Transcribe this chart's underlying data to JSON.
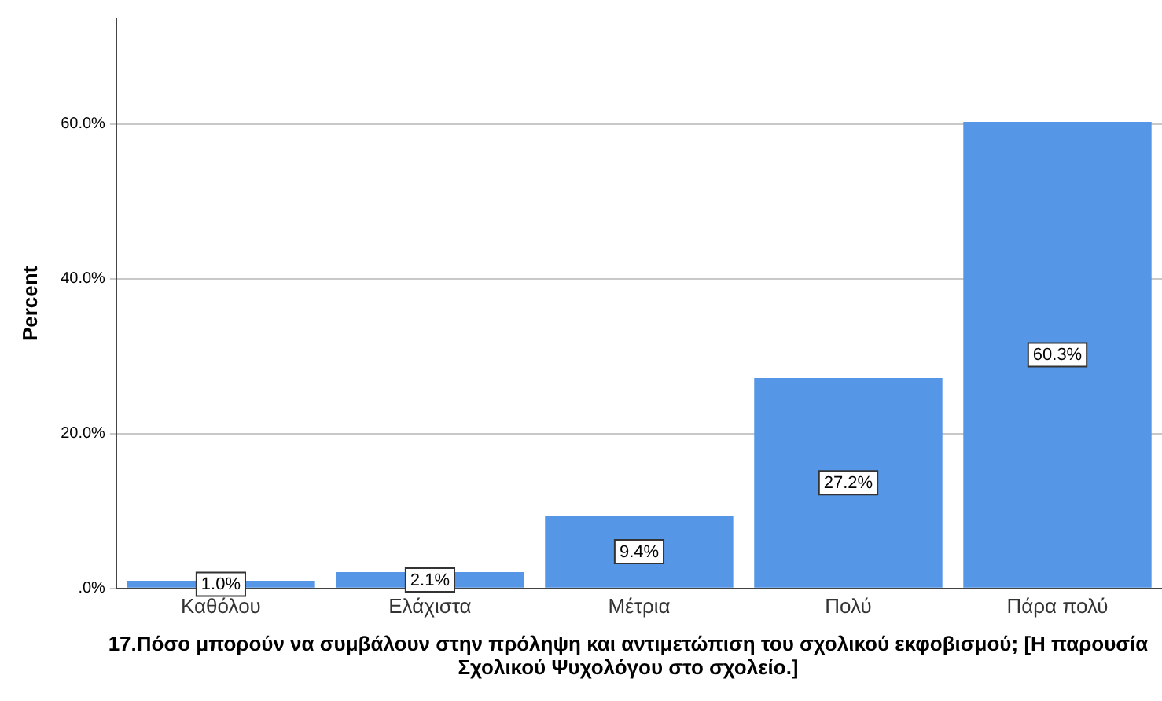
{
  "chart_data": {
    "type": "bar",
    "ylabel": "Percent",
    "xlabel": "17.Πόσο μπορούν να συμβάλουν στην πρόληψη και αντιμετώπιση του σχολικού εκφοβισμού; [Η παρουσία Σχολικού Ψυχολόγου στο σχολείο.]",
    "categories": [
      "Καθόλου",
      "Ελάχιστα",
      "Μέτρια",
      "Πολύ",
      "Πάρα πολύ"
    ],
    "values": [
      1.0,
      2.1,
      9.4,
      27.2,
      60.3
    ],
    "value_labels": [
      "1.0%",
      "2.1%",
      "9.4%",
      "27.2%",
      "60.3%"
    ],
    "color": "#5596e6",
    "ylim": [
      0,
      73.6
    ],
    "yticks": [
      {
        "value": 0,
        "label": ".0%"
      },
      {
        "value": 20,
        "label": "20.0%"
      },
      {
        "value": 40,
        "label": "40.0%"
      },
      {
        "value": 60,
        "label": "60.0%"
      }
    ],
    "grid": "y"
  }
}
